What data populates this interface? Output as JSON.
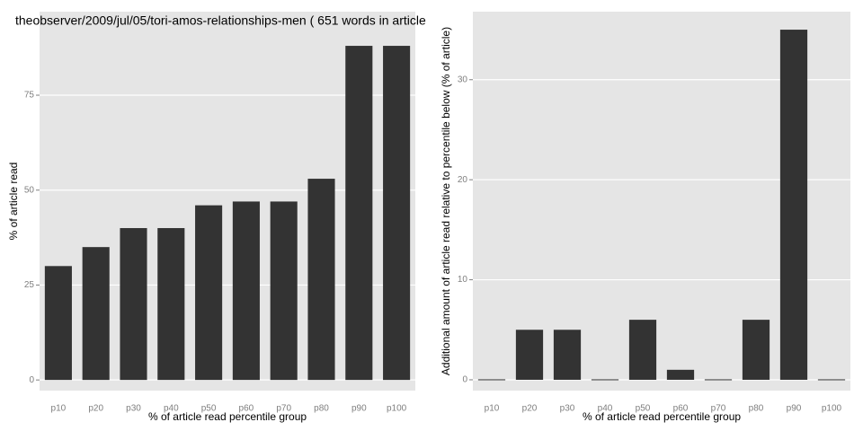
{
  "chart_data": [
    {
      "type": "bar",
      "title": "theobserver/2009/jul/05/tori-amos-relationships-men ( 651 words in article",
      "categories": [
        "p10",
        "p20",
        "p30",
        "p40",
        "p50",
        "p60",
        "p70",
        "p80",
        "p90",
        "p100"
      ],
      "values": [
        30,
        35,
        40,
        40,
        46,
        47,
        47,
        53,
        88,
        88
      ],
      "color": "#333333",
      "ylim": [
        -2.8,
        97
      ],
      "yticks": [
        0,
        25,
        50,
        75
      ],
      "grid": true,
      "xlabel": "% of article read percentile group",
      "ylabel": "% of article read"
    },
    {
      "type": "bar",
      "categories": [
        "p10",
        "p20",
        "p30",
        "p40",
        "p50",
        "p60",
        "p70",
        "p80",
        "p90",
        "p100"
      ],
      "values": [
        0,
        5,
        5,
        0,
        6,
        1,
        0,
        6,
        35,
        0
      ],
      "color": "#333333",
      "ylim": [
        -1.08,
        36.8
      ],
      "yticks": [
        0,
        10,
        20,
        30
      ],
      "grid": true,
      "xlabel": "% of article read percentile group",
      "ylabel": "Additional amount of article read relative to percentile below (% of article)"
    }
  ]
}
